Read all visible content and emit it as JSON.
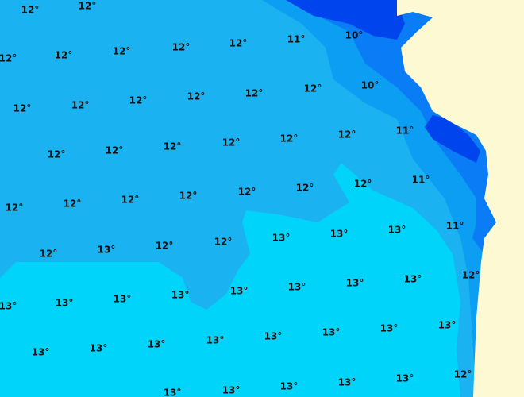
{
  "labels": [
    "12°",
    "12°",
    "11°",
    "10°",
    "12°",
    "12°",
    "12°",
    "12°",
    "12°",
    "10°",
    "12°",
    "12°",
    "12°",
    "12°",
    "12°",
    "12°",
    "11°",
    "12°",
    "12°",
    "12°",
    "12°",
    "12°",
    "12°",
    "11°",
    "12°",
    "12°",
    "12°",
    "12°",
    "12°",
    "12°",
    "12°",
    "11°",
    "13°",
    "13°",
    "13°",
    "12°",
    "12°",
    "13°",
    "12°",
    "12°",
    "13°",
    "13°",
    "13°",
    "13°",
    "13°",
    "13°",
    "13°",
    "13°",
    "13°",
    "13°",
    "13°",
    "13°",
    "13°",
    "13°",
    "13°",
    "13°",
    "12°",
    "13°",
    "13°",
    "13°",
    "13°",
    "13°"
  ]
}
